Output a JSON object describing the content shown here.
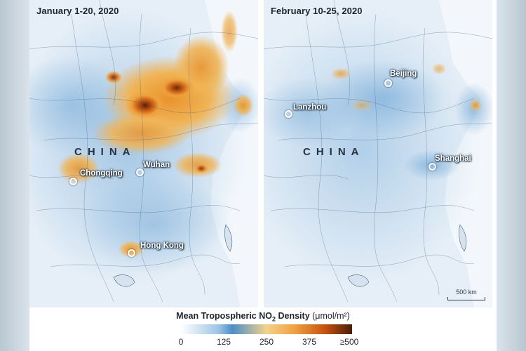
{
  "panels": [
    {
      "title": "January 1-20, 2020",
      "country": "CHINA",
      "cities": [
        "Chongqing",
        "Wuhan",
        "Hong Kong"
      ]
    },
    {
      "title": "February 10-25, 2020",
      "country": "CHINA",
      "cities": [
        "Lanzhou",
        "Beijing",
        "Shanghai"
      ],
      "scale_label": "500 km"
    }
  ],
  "legend": {
    "title_main": "Mean Tropospheric NO",
    "title_sub": "2",
    "title_rest": " Density ",
    "unit": "(μmol/m²)",
    "ticks": [
      "0",
      "125",
      "250",
      "375",
      "≥500"
    ]
  },
  "colors": {
    "low": "#ffffff",
    "mid_blue": "#4a8fc9",
    "orange": "#f0a341",
    "high": "#4a1d08",
    "land": "#e4eef6",
    "sea": "#f4f8fb"
  }
}
